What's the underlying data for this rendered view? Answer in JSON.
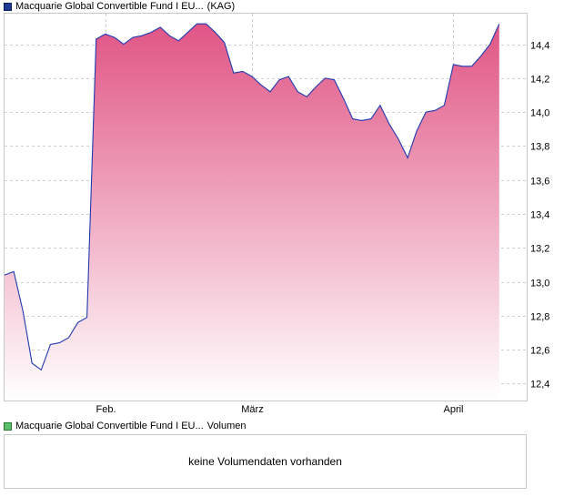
{
  "price_legend": {
    "label": "Macquarie Global Convertible Fund I EU...",
    "exchange": "(KAG)"
  },
  "volume_legend": {
    "label": "Macquarie Global Convertible Fund I EU...",
    "suffix": "Volumen"
  },
  "volume_panel": {
    "message": "keine Volumendaten vorhanden"
  },
  "colors": {
    "line": "#1f3ab0",
    "fill_top": "#e05585",
    "fill_bottom": "#ffffff",
    "grid": "#cfcfcf",
    "volume_swatch": "#5cc06a"
  },
  "chart_data": {
    "type": "area",
    "title": "",
    "xlabel": "",
    "ylabel": "",
    "x_ticks": [
      "Feb.",
      "März",
      "April"
    ],
    "x_tick_index": [
      11,
      27,
      49
    ],
    "x_range": [
      0,
      57
    ],
    "ylim": [
      12.3,
      14.58
    ],
    "y_ticks": [
      "12,4",
      "12,6",
      "12,8",
      "13,0",
      "13,2",
      "13,4",
      "13,6",
      "13,8",
      "14,0",
      "14,2",
      "14,4"
    ],
    "y_tick_values": [
      12.4,
      12.6,
      12.8,
      13.0,
      13.2,
      13.4,
      13.6,
      13.8,
      14.0,
      14.2,
      14.4
    ],
    "grid": true,
    "series": [
      {
        "values": [
          13.04,
          13.06,
          12.83,
          12.52,
          12.48,
          12.63,
          12.64,
          12.67,
          12.76,
          12.79,
          14.43,
          14.46,
          14.44,
          14.4,
          14.44,
          14.45,
          14.47,
          14.5,
          14.45,
          14.42,
          14.47,
          14.52,
          14.52,
          14.47,
          14.41,
          14.23,
          14.24,
          14.21,
          14.16,
          14.12,
          14.19,
          14.21,
          14.12,
          14.09,
          14.15,
          14.2,
          14.19,
          14.08,
          13.96,
          13.95,
          13.96,
          14.04,
          13.93,
          13.84,
          13.73,
          13.89,
          14.0,
          14.01,
          14.04,
          14.28,
          14.27,
          14.27,
          14.33,
          14.4,
          14.52
        ]
      }
    ]
  }
}
